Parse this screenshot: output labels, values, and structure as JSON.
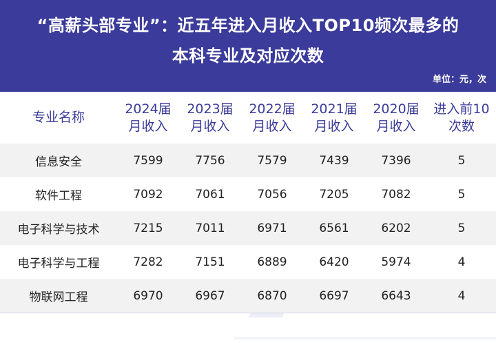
{
  "header": {
    "title_line1": "“高薪头部专业”：近五年进入月收入TOP10频次最多的",
    "title_line2": "本科专业及对应次数",
    "unit": "单位：元，次"
  },
  "table": {
    "columns": [
      {
        "l1": "专业名称",
        "l2": ""
      },
      {
        "l1": "2024届",
        "l2": "月收入"
      },
      {
        "l1": "2023届",
        "l2": "月收入"
      },
      {
        "l1": "2022届",
        "l2": "月收入"
      },
      {
        "l1": "2021届",
        "l2": "月收入"
      },
      {
        "l1": "2020届",
        "l2": "月收入"
      },
      {
        "l1": "进入前10",
        "l2": "次数"
      }
    ],
    "rows": [
      [
        "信息安全",
        "7599",
        "7756",
        "7579",
        "7439",
        "7396",
        "5"
      ],
      [
        "软件工程",
        "7092",
        "7061",
        "7056",
        "7205",
        "7082",
        "5"
      ],
      [
        "电子科学与技术",
        "7215",
        "7011",
        "6971",
        "6561",
        "6202",
        "5"
      ],
      [
        "电子科学与工程",
        "7282",
        "7151",
        "6889",
        "6420",
        "5974",
        "4"
      ],
      [
        "物联网工程",
        "6970",
        "6967",
        "6870",
        "6697",
        "6643",
        "4"
      ]
    ]
  },
  "colors": {
    "header_bg": "#3b3b9b",
    "header_text": "#3b3b9b",
    "row_shade": "#f2f2f2"
  },
  "icons": {
    "background": "decorative-illustration"
  }
}
